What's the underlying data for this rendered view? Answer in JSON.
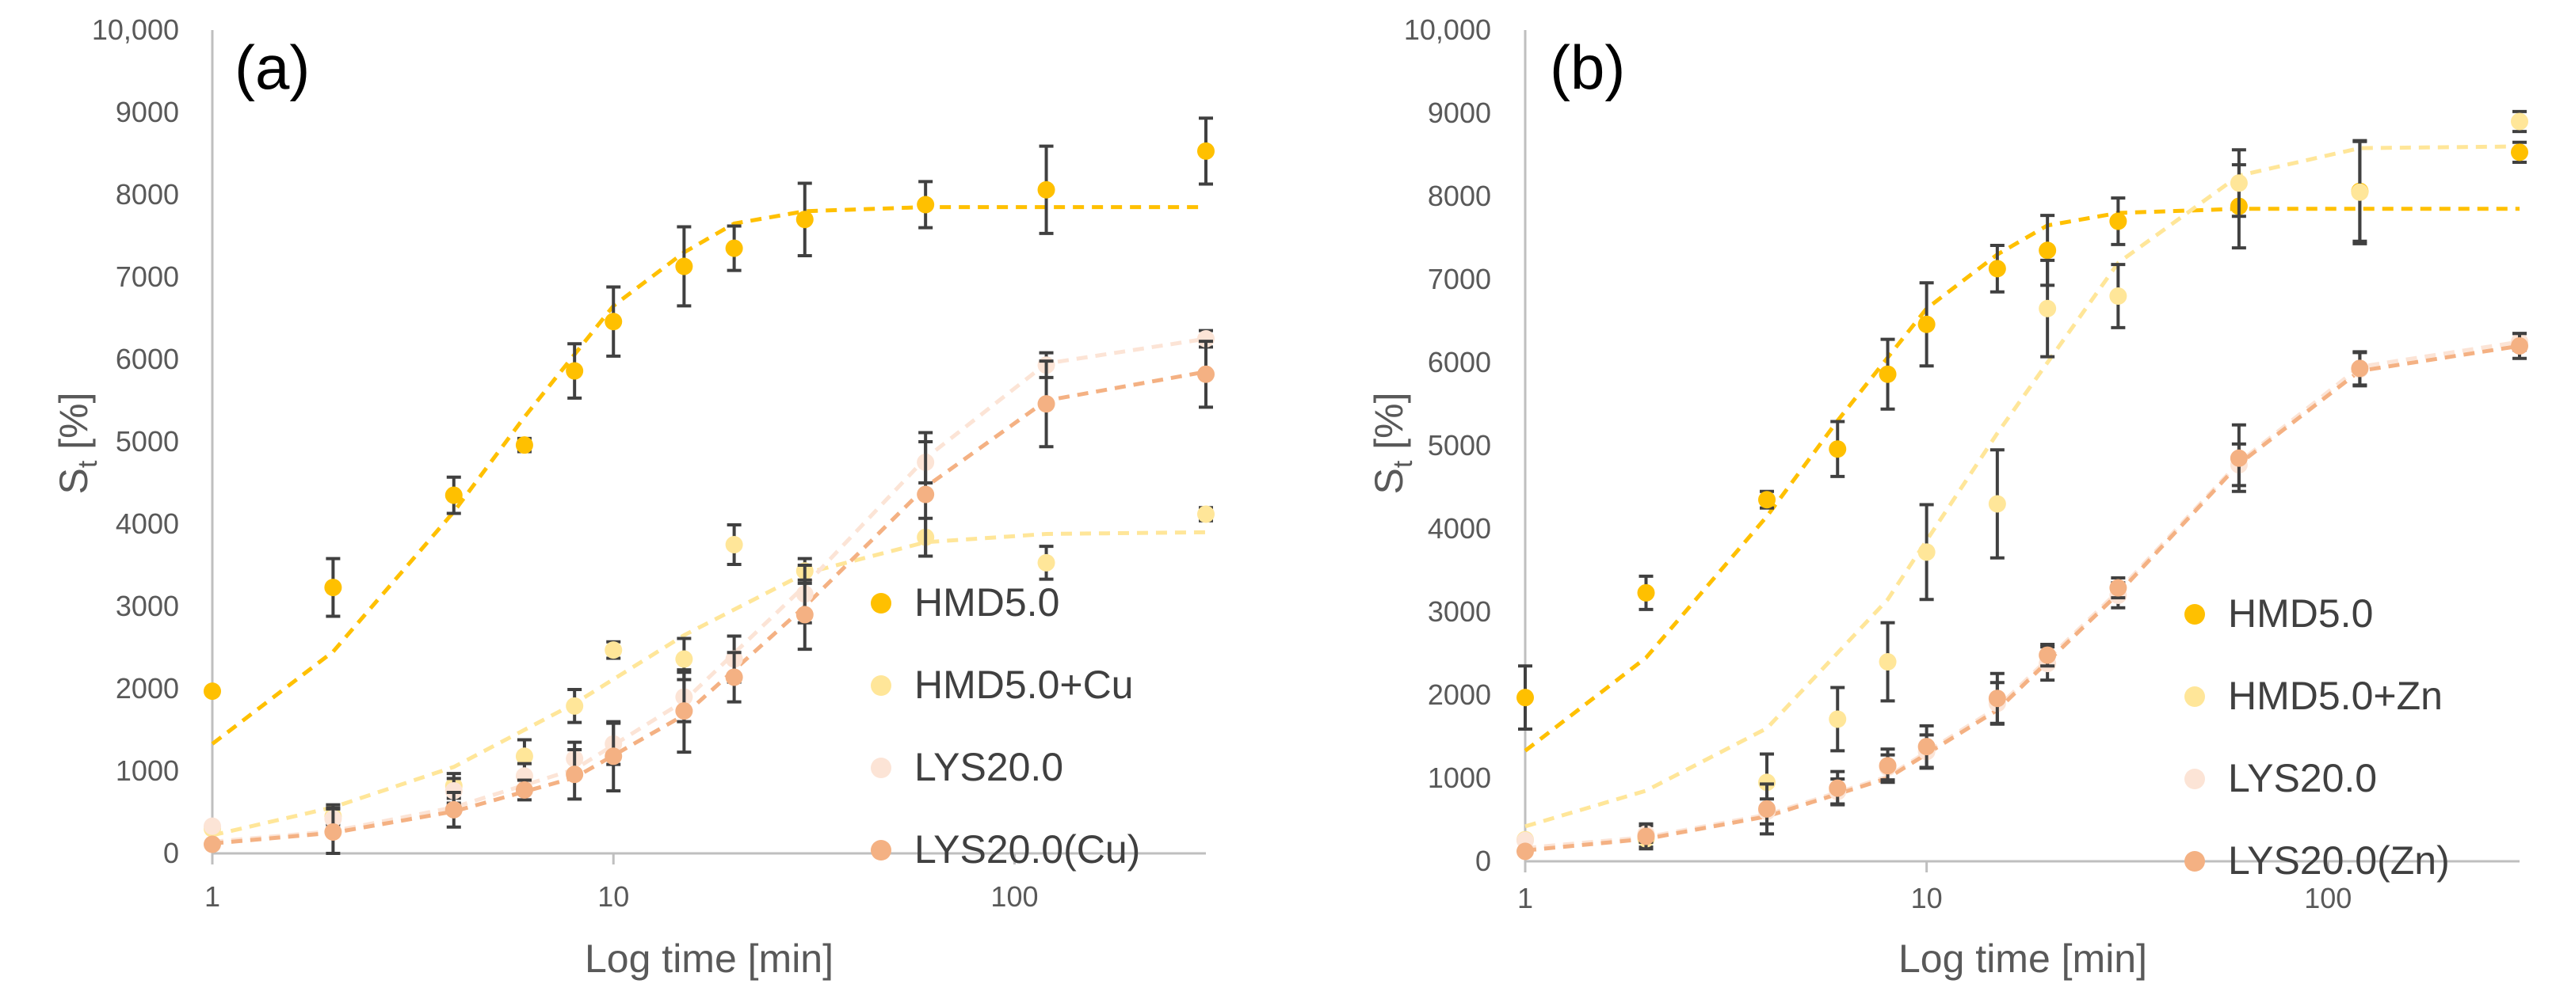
{
  "chart_data": [
    {
      "type": "scatter",
      "panel_label": "(a)",
      "xlabel": "Log time [min]",
      "ylabel_main": "S",
      "ylabel_sub": "t",
      "ylabel_unit": " [%]",
      "xscale": "log",
      "xlim": [
        1,
        300
      ],
      "ylim": [
        0,
        10000
      ],
      "x_ticks": [
        1,
        10,
        100
      ],
      "y_ticks": [
        0,
        1000,
        2000,
        3000,
        4000,
        5000,
        6000,
        7000,
        8000,
        9000,
        10000
      ],
      "y_tick_labels": [
        "0",
        "1000",
        "2000",
        "3000",
        "4000",
        "5000",
        "6000",
        "7000",
        "8000",
        "9000",
        "10,000"
      ],
      "legend_position": "lower-right",
      "series": [
        {
          "name": "HMD5.0",
          "color": "#FFC000",
          "x": [
            1,
            2,
            4,
            6,
            8,
            10,
            15,
            20,
            30,
            60,
            120,
            300
          ],
          "y": [
            1970,
            3230,
            4350,
            4960,
            5860,
            6460,
            7130,
            7350,
            7700,
            7880,
            8060,
            8530
          ],
          "err": [
            0,
            350,
            220,
            80,
            330,
            420,
            480,
            270,
            440,
            280,
            530,
            400
          ],
          "fit": [
            [
              1,
              1330
            ],
            [
              2,
              2450
            ],
            [
              4,
              4150
            ],
            [
              6,
              5300
            ],
            [
              10,
              6650
            ],
            [
              15,
              7300
            ],
            [
              20,
              7650
            ],
            [
              30,
              7800
            ],
            [
              60,
              7850
            ],
            [
              120,
              7850
            ],
            [
              300,
              7850
            ]
          ]
        },
        {
          "name": "HMD5.0+Cu",
          "color": "#FFE699",
          "x": [
            1,
            2,
            4,
            6,
            8,
            10,
            15,
            20,
            30,
            60,
            120,
            300
          ],
          "y": [
            300,
            450,
            820,
            1180,
            1790,
            2470,
            2360,
            3750,
            3430,
            3840,
            3530,
            4120
          ],
          "err": [
            0,
            100,
            150,
            200,
            200,
            100,
            250,
            240,
            150,
            230,
            200,
            80
          ],
          "fit": [
            [
              1,
              220
            ],
            [
              2,
              560
            ],
            [
              4,
              1050
            ],
            [
              8,
              1820
            ],
            [
              15,
              2650
            ],
            [
              30,
              3400
            ],
            [
              60,
              3780
            ],
            [
              120,
              3880
            ],
            [
              300,
              3900
            ]
          ]
        },
        {
          "name": "LYS20.0",
          "color": "#FCE4D6",
          "x": [
            1,
            2,
            4,
            6,
            8,
            10,
            15,
            20,
            30,
            60,
            120,
            300
          ],
          "y": [
            330,
            420,
            760,
            940,
            1150,
            1330,
            1900,
            2360,
            3150,
            4750,
            5930,
            6250
          ],
          "err": [
            0,
            120,
            150,
            150,
            200,
            250,
            300,
            280,
            350,
            250,
            150,
            100
          ],
          "fit": [
            [
              1,
              140
            ],
            [
              2,
              270
            ],
            [
              4,
              560
            ],
            [
              8,
              1020
            ],
            [
              15,
              1850
            ],
            [
              30,
              3250
            ],
            [
              60,
              4800
            ],
            [
              120,
              5950
            ],
            [
              300,
              6250
            ]
          ]
        },
        {
          "name": "LYS20.0(Cu)",
          "color": "#F4B183",
          "x": [
            1,
            2,
            4,
            6,
            8,
            10,
            15,
            20,
            30,
            60,
            120,
            300
          ],
          "y": [
            110,
            260,
            530,
            770,
            960,
            1180,
            1730,
            2140,
            2900,
            4360,
            5460,
            5820
          ],
          "err": [
            0,
            330,
            210,
            120,
            300,
            420,
            500,
            300,
            420,
            750,
            520,
            400
          ],
          "fit": [
            [
              1,
              120
            ],
            [
              2,
              250
            ],
            [
              4,
              510
            ],
            [
              8,
              920
            ],
            [
              15,
              1680
            ],
            [
              30,
              3000
            ],
            [
              60,
              4450
            ],
            [
              120,
              5500
            ],
            [
              300,
              5850
            ]
          ]
        }
      ]
    },
    {
      "type": "scatter",
      "panel_label": "(b)",
      "xlabel": "Log time [min]",
      "ylabel_main": "S",
      "ylabel_sub": "t",
      "ylabel_unit": " [%]",
      "xscale": "log",
      "xlim": [
        1,
        300
      ],
      "ylim": [
        0,
        10000
      ],
      "x_ticks": [
        1,
        10,
        100
      ],
      "y_ticks": [
        0,
        1000,
        2000,
        3000,
        4000,
        5000,
        6000,
        7000,
        8000,
        9000,
        10000
      ],
      "y_tick_labels": [
        "0",
        "1000",
        "2000",
        "3000",
        "4000",
        "5000",
        "6000",
        "7000",
        "8000",
        "9000",
        "10,000"
      ],
      "legend_position": "lower-right",
      "series": [
        {
          "name": "HMD5.0",
          "color": "#FFC000",
          "x": [
            1,
            2,
            4,
            6,
            8,
            10,
            15,
            20,
            30,
            60,
            120,
            300
          ],
          "y": [
            1970,
            3230,
            4350,
            4960,
            5860,
            6460,
            7130,
            7350,
            7700,
            7880,
            8060,
            8530
          ],
          "err": [
            380,
            200,
            100,
            330,
            420,
            500,
            280,
            420,
            280,
            500,
            600,
            120
          ],
          "fit": [
            [
              1,
              1330
            ],
            [
              2,
              2450
            ],
            [
              4,
              4150
            ],
            [
              6,
              5300
            ],
            [
              10,
              6650
            ],
            [
              15,
              7300
            ],
            [
              20,
              7650
            ],
            [
              30,
              7800
            ],
            [
              60,
              7850
            ],
            [
              120,
              7850
            ],
            [
              300,
              7850
            ]
          ]
        },
        {
          "name": "HMD5.0+Zn",
          "color": "#FFE699",
          "x": [
            1,
            2,
            4,
            6,
            8,
            10,
            15,
            20,
            30,
            60,
            120,
            300
          ],
          "y": [
            260,
            270,
            950,
            1710,
            2400,
            3720,
            4300,
            6650,
            6800,
            8160,
            8050,
            8900
          ],
          "err": [
            0,
            100,
            340,
            380,
            470,
            570,
            650,
            580,
            380,
            400,
            620,
            120
          ],
          "fit": [
            [
              1,
              420
            ],
            [
              2,
              850
            ],
            [
              4,
              1600
            ],
            [
              8,
              3150
            ],
            [
              15,
              5150
            ],
            [
              30,
              7200
            ],
            [
              60,
              8250
            ],
            [
              120,
              8580
            ],
            [
              300,
              8600
            ]
          ]
        },
        {
          "name": "LYS20.0",
          "color": "#FCE4D6",
          "x": [
            1,
            2,
            4,
            6,
            8,
            10,
            15,
            20,
            30,
            60,
            120,
            300
          ],
          "y": [
            250,
            330,
            600,
            840,
            1130,
            1320,
            1900,
            2380,
            3200,
            4770,
            5920,
            6250
          ],
          "err": [
            0,
            100,
            150,
            150,
            150,
            200,
            250,
            200,
            150,
            250,
            200,
            100
          ],
          "fit": [
            [
              1,
              160
            ],
            [
              2,
              290
            ],
            [
              4,
              560
            ],
            [
              8,
              1020
            ],
            [
              15,
              1850
            ],
            [
              30,
              3250
            ],
            [
              60,
              4800
            ],
            [
              120,
              5950
            ],
            [
              300,
              6250
            ]
          ]
        },
        {
          "name": "LYS20.0(Zn)",
          "color": "#F4B183",
          "x": [
            1,
            2,
            4,
            6,
            8,
            10,
            15,
            20,
            30,
            60,
            120,
            300
          ],
          "y": [
            120,
            300,
            630,
            880,
            1150,
            1380,
            1960,
            2480,
            3290,
            4850,
            5930,
            6200
          ],
          "err": [
            0,
            150,
            300,
            200,
            200,
            250,
            300,
            130,
            120,
            400,
            200,
            150
          ],
          "fit": [
            [
              1,
              130
            ],
            [
              2,
              270
            ],
            [
              4,
              540
            ],
            [
              8,
              1000
            ],
            [
              15,
              1820
            ],
            [
              30,
              3220
            ],
            [
              60,
              4780
            ],
            [
              120,
              5900
            ],
            [
              300,
              6200
            ]
          ]
        }
      ]
    }
  ]
}
